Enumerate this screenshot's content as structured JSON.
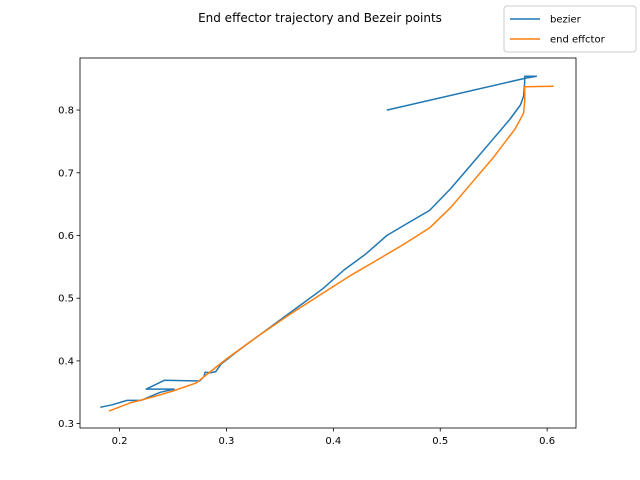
{
  "chart_data": {
    "type": "line",
    "title": "End effector trajectory and Bezeir points",
    "xlabel": "",
    "ylabel": "",
    "xlim": [
      0.163,
      0.627
    ],
    "ylim": [
      0.293,
      0.883
    ],
    "x_ticks": [
      0.2,
      0.3,
      0.4,
      0.5,
      0.6
    ],
    "x_tick_labels": [
      "0.2",
      "0.3",
      "0.4",
      "0.5",
      "0.6"
    ],
    "y_ticks": [
      0.3,
      0.4,
      0.5,
      0.6,
      0.7,
      0.8
    ],
    "y_tick_labels": [
      "0.3",
      "0.4",
      "0.5",
      "0.6",
      "0.7",
      "0.8"
    ],
    "grid": false,
    "legend_position": "top-right (outside axes)",
    "series": [
      {
        "name": "bezier",
        "color": "#1f77b4",
        "points": [
          [
            0.45,
            0.8
          ],
          [
            0.58,
            0.851
          ],
          [
            0.59,
            0.854
          ],
          [
            0.579,
            0.854
          ],
          [
            0.579,
            0.845
          ],
          [
            0.578,
            0.822
          ],
          [
            0.575,
            0.808
          ],
          [
            0.565,
            0.785
          ],
          [
            0.55,
            0.755
          ],
          [
            0.53,
            0.715
          ],
          [
            0.51,
            0.675
          ],
          [
            0.49,
            0.64
          ],
          [
            0.47,
            0.62
          ],
          [
            0.45,
            0.6
          ],
          [
            0.43,
            0.57
          ],
          [
            0.41,
            0.545
          ],
          [
            0.39,
            0.515
          ],
          [
            0.37,
            0.49
          ],
          [
            0.35,
            0.465
          ],
          [
            0.33,
            0.44
          ],
          [
            0.31,
            0.415
          ],
          [
            0.295,
            0.395
          ],
          [
            0.29,
            0.383
          ],
          [
            0.285,
            0.381
          ],
          [
            0.28,
            0.382
          ],
          [
            0.279,
            0.375
          ],
          [
            0.275,
            0.368
          ],
          [
            0.242,
            0.369
          ],
          [
            0.225,
            0.355
          ],
          [
            0.251,
            0.355
          ],
          [
            0.238,
            0.35
          ],
          [
            0.22,
            0.337
          ],
          [
            0.207,
            0.337
          ],
          [
            0.193,
            0.33
          ],
          [
            0.182,
            0.326
          ]
        ]
      },
      {
        "name": "end effctor",
        "color": "#ff7f0e",
        "points": [
          [
            0.606,
            0.838
          ],
          [
            0.579,
            0.837
          ],
          [
            0.579,
            0.815
          ],
          [
            0.578,
            0.795
          ],
          [
            0.57,
            0.77
          ],
          [
            0.55,
            0.725
          ],
          [
            0.53,
            0.685
          ],
          [
            0.51,
            0.645
          ],
          [
            0.49,
            0.612
          ],
          [
            0.465,
            0.585
          ],
          [
            0.44,
            0.56
          ],
          [
            0.415,
            0.535
          ],
          [
            0.39,
            0.508
          ],
          [
            0.36,
            0.475
          ],
          [
            0.33,
            0.44
          ],
          [
            0.3,
            0.403
          ],
          [
            0.285,
            0.383
          ],
          [
            0.272,
            0.365
          ],
          [
            0.25,
            0.352
          ],
          [
            0.23,
            0.342
          ],
          [
            0.21,
            0.333
          ],
          [
            0.19,
            0.32
          ]
        ]
      }
    ]
  }
}
